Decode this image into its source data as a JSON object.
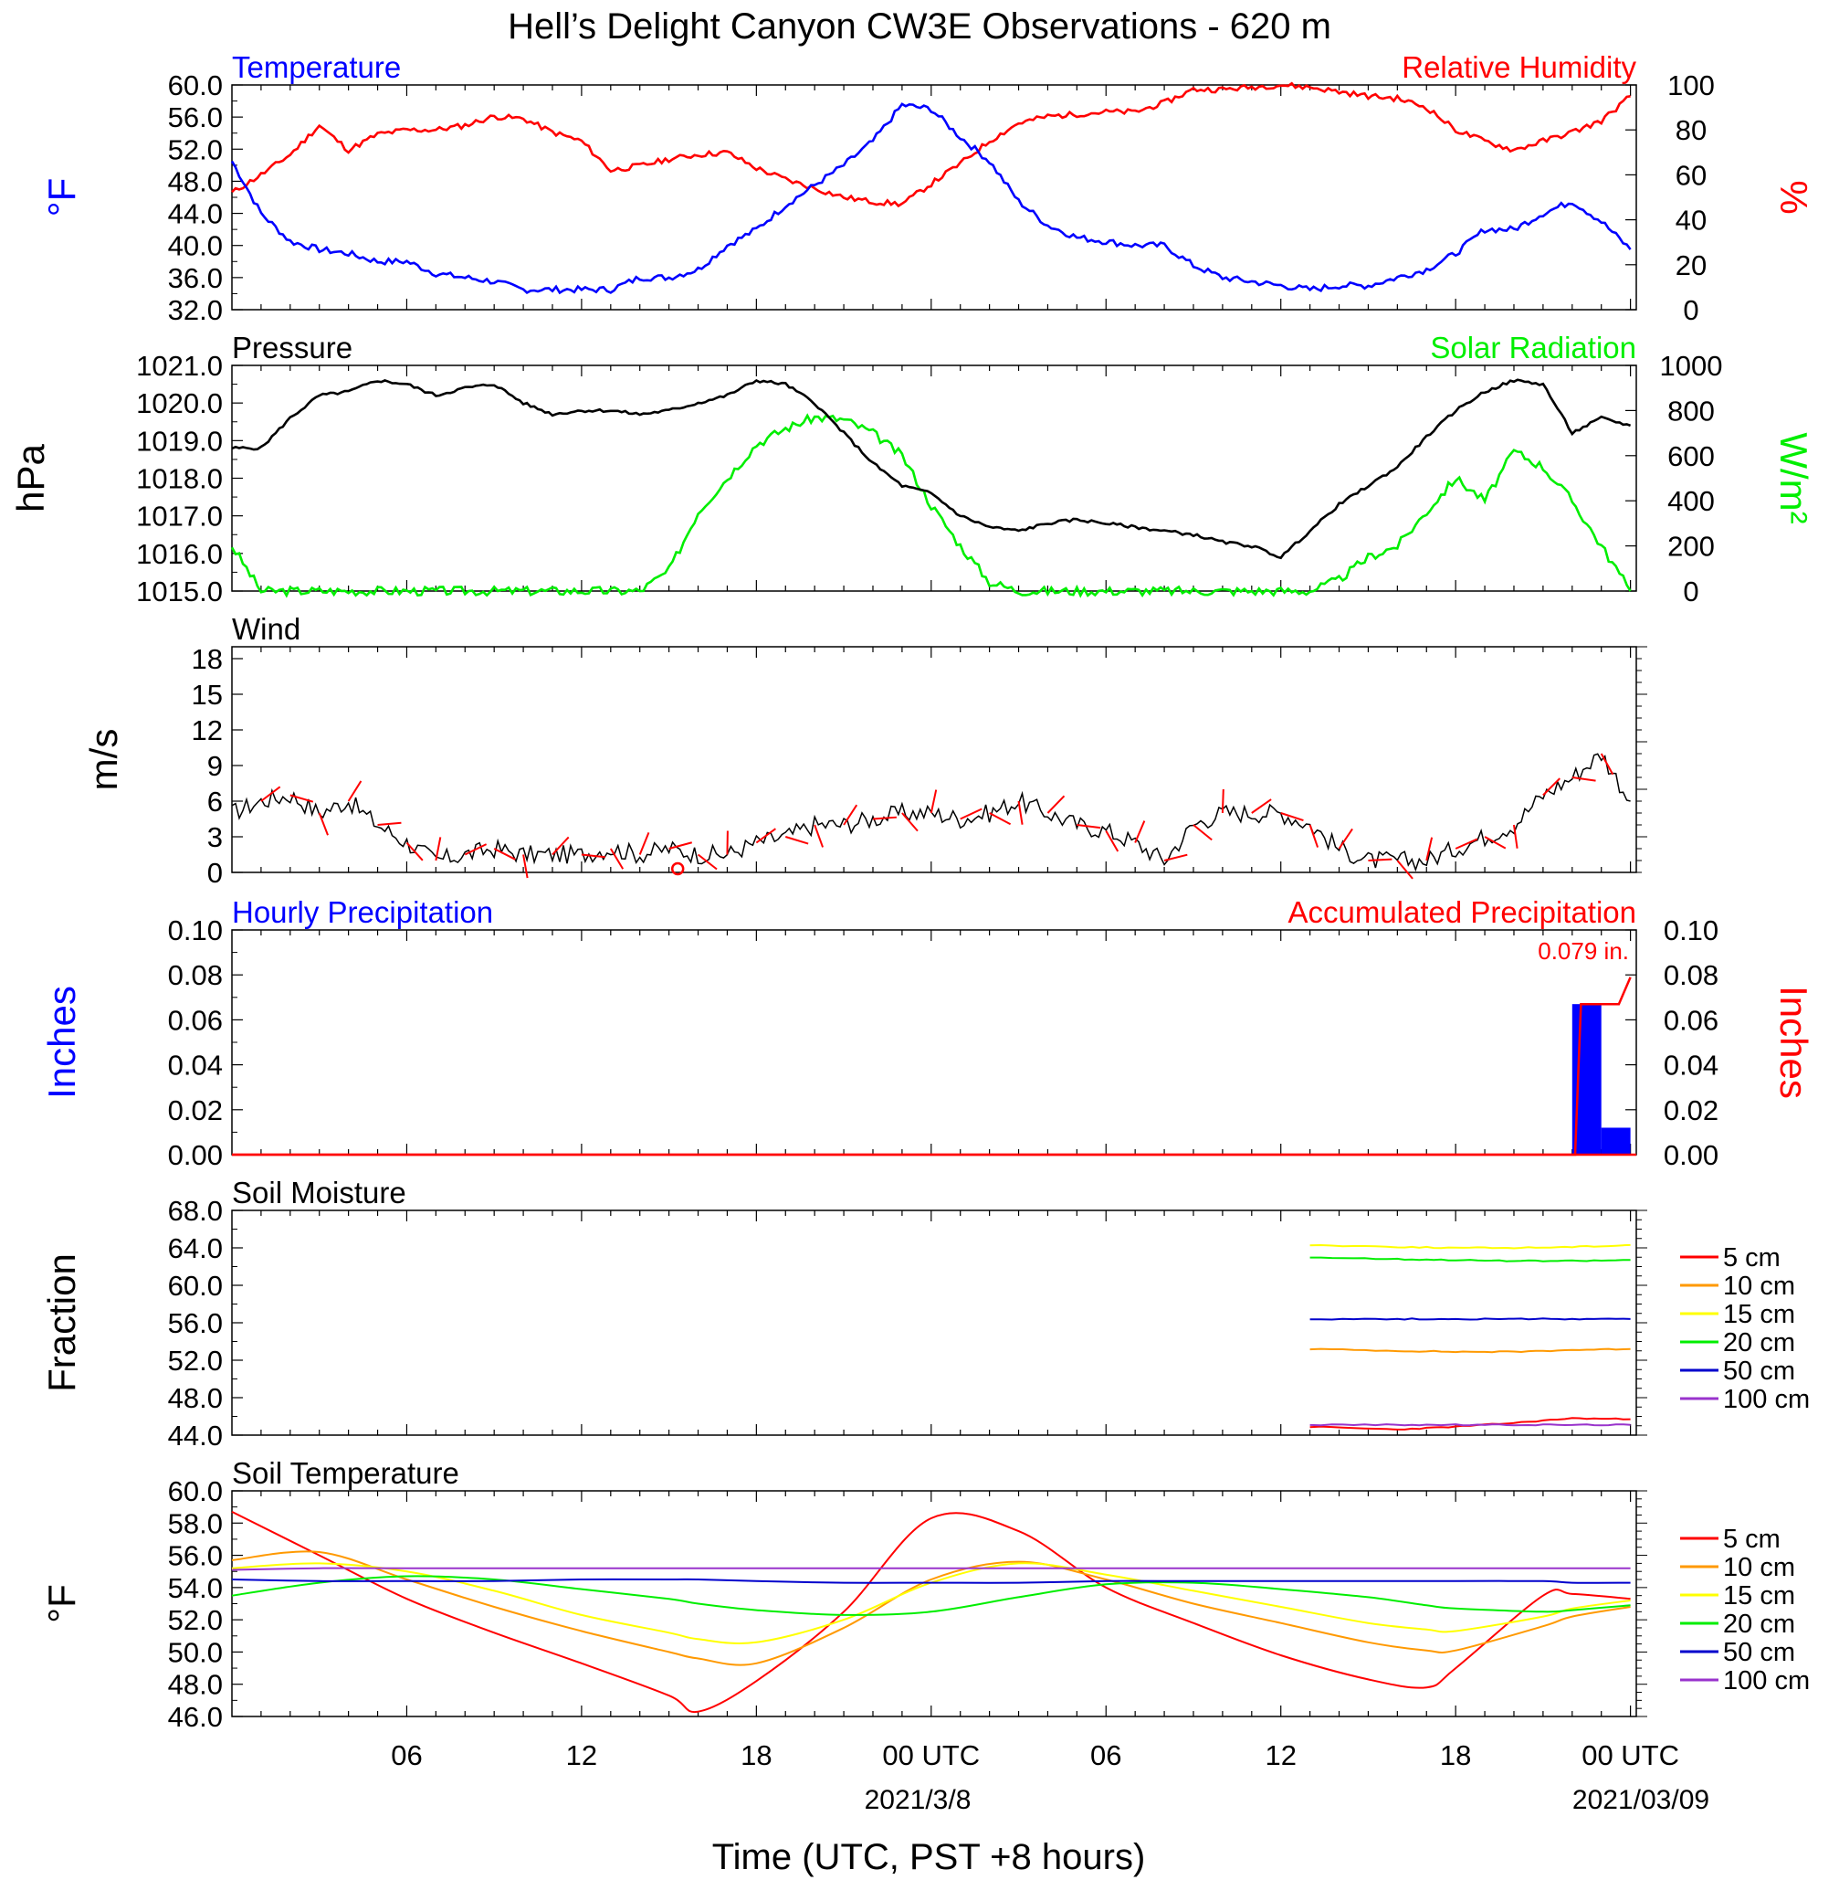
{
  "page": {
    "title": "Hell’s Delight Canyon CW3E Observations - 620 m",
    "xlabel": "Time (UTC, PST +8 hours)",
    "x_ticks": [
      "06",
      "12",
      "18",
      "00 UTC",
      "06",
      "12",
      "18",
      "00 UTC"
    ],
    "x_tick_hours": [
      6,
      12,
      18,
      24,
      30,
      36,
      42,
      48
    ],
    "date_labels": [
      "2021/3/8",
      "2021/03/09"
    ]
  },
  "chart_data": [
    {
      "type": "line",
      "title_left": "Temperature",
      "title_right": "Relative Humidity",
      "ylabel_left": "°F",
      "ylabel_right": "%",
      "ylim_left": [
        32,
        60
      ],
      "ylim_right": [
        0,
        100
      ],
      "yticks_left": [
        "60.0",
        "56.0",
        "52.0",
        "48.0",
        "44.0",
        "40.0",
        "36.0",
        "32.0"
      ],
      "yticks_right": [
        "100",
        "80",
        "60",
        "40",
        "20",
        "0"
      ],
      "colors": {
        "temperature": "#0000ff",
        "relative_humidity": "#ff0000"
      },
      "x_hours": [
        0,
        1,
        2,
        3,
        4,
        5,
        6,
        7,
        8,
        9,
        10,
        11,
        12,
        13,
        14,
        15,
        16,
        17,
        18,
        19,
        20,
        21,
        22,
        23,
        24,
        25,
        26,
        27,
        28,
        29,
        30,
        31,
        32,
        33,
        34,
        35,
        36,
        37,
        38,
        39,
        40,
        41,
        42,
        43,
        44,
        45,
        46,
        47,
        48
      ],
      "series": [
        {
          "name": "Temperature",
          "axis": "left",
          "values": [
            50.5,
            44,
            40.5,
            39.5,
            39,
            38,
            38,
            36.5,
            36,
            35.5,
            34.5,
            34.5,
            34.5,
            34.5,
            36,
            36,
            37,
            40,
            42,
            45,
            47.5,
            50,
            53,
            57.5,
            57,
            53.5,
            50.5,
            45.5,
            42.5,
            41,
            40.5,
            40,
            40,
            37.5,
            36,
            35.5,
            35,
            34.5,
            35,
            35,
            36,
            37,
            39,
            42,
            42,
            44,
            45.5,
            43,
            39.5
          ]
        },
        {
          "name": "Relative Humidity",
          "axis": "right",
          "values": [
            52,
            60,
            69,
            82,
            71,
            78,
            80,
            80,
            82,
            86,
            85,
            79,
            75,
            62,
            64,
            67,
            69,
            70,
            63,
            58,
            54,
            50,
            48,
            47,
            56,
            65,
            75,
            83,
            86,
            87,
            88,
            88,
            92,
            98,
            98,
            99,
            100,
            99,
            97,
            95,
            94,
            90,
            80,
            75,
            71,
            75,
            79,
            84,
            95
          ]
        }
      ]
    },
    {
      "type": "line",
      "title_left": "Pressure",
      "title_right": "Solar Radiation",
      "ylabel_left": "hPa",
      "ylabel_right": "W/m²",
      "ylim_left": [
        1015,
        1021
      ],
      "ylim_right": [
        0,
        1000
      ],
      "yticks_left": [
        "1021.0",
        "1020.0",
        "1019.0",
        "1018.0",
        "1017.0",
        "1016.0",
        "1015.0"
      ],
      "yticks_right": [
        "1000",
        "800",
        "600",
        "400",
        "200",
        "0"
      ],
      "colors": {
        "pressure": "#000000",
        "solar_radiation": "#00ee00"
      },
      "x_hours": [
        0,
        1,
        2,
        3,
        4,
        5,
        6,
        7,
        8,
        9,
        10,
        11,
        12,
        13,
        14,
        15,
        16,
        17,
        18,
        19,
        20,
        21,
        22,
        23,
        24,
        25,
        26,
        27,
        28,
        29,
        30,
        31,
        32,
        33,
        34,
        35,
        36,
        37,
        38,
        39,
        40,
        41,
        42,
        43,
        44,
        45,
        46,
        47,
        48
      ],
      "series": [
        {
          "name": "Pressure",
          "axis": "left",
          "values": [
            1018.8,
            1018.8,
            1019.6,
            1020.2,
            1020.3,
            1020.6,
            1020.5,
            1020.2,
            1020.4,
            1020.5,
            1020.0,
            1019.7,
            1019.8,
            1019.8,
            1019.7,
            1019.8,
            1020.0,
            1020.2,
            1020.6,
            1020.5,
            1020.0,
            1019.2,
            1018.4,
            1017.8,
            1017.6,
            1017.0,
            1016.7,
            1016.6,
            1016.8,
            1016.9,
            1016.8,
            1016.7,
            1016.6,
            1016.5,
            1016.3,
            1016.2,
            1015.9,
            1016.6,
            1017.3,
            1017.8,
            1018.3,
            1019.1,
            1019.8,
            1020.3,
            1020.6,
            1020.5,
            1019.2,
            1019.6,
            1019.4
          ]
        },
        {
          "name": "Solar Radiation",
          "axis": "right",
          "values": [
            200,
            0,
            0,
            0,
            0,
            0,
            0,
            0,
            0,
            0,
            0,
            0,
            0,
            0,
            0,
            90,
            350,
            500,
            650,
            720,
            770,
            760,
            700,
            600,
            380,
            200,
            40,
            0,
            0,
            0,
            0,
            0,
            0,
            0,
            0,
            0,
            0,
            0,
            50,
            150,
            200,
            350,
            500,
            400,
            620,
            550,
            400,
            200,
            0
          ]
        }
      ]
    },
    {
      "type": "line",
      "title": "Wind",
      "ylabel": "m/s",
      "ylim": [
        0,
        19
      ],
      "yticks": [
        "18",
        "15",
        "12",
        "9",
        "6",
        "3",
        "0"
      ],
      "color": "#000000",
      "barb_color": "#ff0000",
      "x_hours": [
        0,
        1,
        2,
        3,
        4,
        5,
        6,
        7,
        8,
        9,
        10,
        11,
        12,
        13,
        14,
        15,
        16,
        17,
        18,
        19,
        20,
        21,
        22,
        23,
        24,
        25,
        26,
        27,
        28,
        29,
        30,
        31,
        32,
        33,
        34,
        35,
        36,
        37,
        38,
        39,
        40,
        41,
        42,
        43,
        44,
        45,
        46,
        47,
        48
      ],
      "series": [
        {
          "name": "Wind speed",
          "values": [
            5,
            6,
            6.5,
            5,
            6,
            4,
            2.5,
            1,
            1.5,
            2,
            1.5,
            1.5,
            1.5,
            2,
            1.5,
            2,
            1.5,
            1.5,
            2.5,
            3,
            4,
            4,
            4.5,
            5,
            5,
            4.5,
            5,
            6,
            5,
            4,
            3.5,
            2.5,
            1,
            4,
            5,
            5,
            5,
            4,
            2,
            1,
            1,
            1,
            2,
            3,
            4,
            6.5,
            8,
            10,
            6
          ]
        }
      ]
    },
    {
      "type": "bar",
      "title_left": "Hourly Precipitation",
      "title_right": "Accumulated Precipitation",
      "annotation": "0.079 in.",
      "ylabel_left": "Inches",
      "ylabel_right": "Inches",
      "ylim": [
        0,
        0.1
      ],
      "yticks": [
        "0.10",
        "0.08",
        "0.06",
        "0.04",
        "0.02",
        "0.00"
      ],
      "colors": {
        "hourly": "#0000ff",
        "accumulated": "#ff0000"
      },
      "bars": [
        {
          "start_hour": 46,
          "end_hour": 47,
          "value": 0.067
        },
        {
          "start_hour": 47,
          "end_hour": 48,
          "value": 0.012
        }
      ],
      "accumulated": {
        "x_hours": [
          0,
          46.1,
          46.3,
          47.0,
          47.6,
          48
        ],
        "values": [
          0,
          0,
          0.067,
          0.067,
          0.067,
          0.079
        ]
      }
    },
    {
      "type": "line",
      "title": "Soil Moisture",
      "ylabel": "Fraction",
      "ylim": [
        44,
        68
      ],
      "yticks": [
        "68.0",
        "64.0",
        "60.0",
        "56.0",
        "52.0",
        "48.0",
        "44.0"
      ],
      "x_hours": [
        37,
        40,
        42,
        44,
        46,
        48
      ],
      "series": [
        {
          "name": "5 cm",
          "color": "#ff0000",
          "values": [
            44.9,
            44.6,
            44.9,
            45.3,
            45.8,
            45.7
          ]
        },
        {
          "name": "10 cm",
          "color": "#ff9900",
          "values": [
            53.2,
            53.0,
            52.9,
            52.9,
            53.1,
            53.2
          ]
        },
        {
          "name": "15 cm",
          "color": "#ffff00",
          "values": [
            64.3,
            64.1,
            64.0,
            64.0,
            64.1,
            64.3
          ]
        },
        {
          "name": "20 cm",
          "color": "#00ee00",
          "values": [
            63.0,
            62.8,
            62.7,
            62.6,
            62.6,
            62.7
          ]
        },
        {
          "name": "50 cm",
          "color": "#0000cc",
          "values": [
            56.4,
            56.4,
            56.4,
            56.4,
            56.4,
            56.4
          ]
        },
        {
          "name": "100 cm",
          "color": "#9933cc",
          "values": [
            45.1,
            45.1,
            45.1,
            45.1,
            45.1,
            45.1
          ]
        }
      ]
    },
    {
      "type": "line",
      "title": "Soil Temperature",
      "ylabel": "°F",
      "ylim": [
        46,
        60
      ],
      "yticks": [
        "60.0",
        "58.0",
        "56.0",
        "54.0",
        "52.0",
        "50.0",
        "48.0",
        "46.0"
      ],
      "x_hours": [
        0,
        3,
        6,
        9,
        12,
        15,
        16,
        18,
        21,
        24,
        27,
        30,
        33,
        36,
        39,
        41,
        42,
        45,
        46,
        48
      ],
      "series": [
        {
          "name": "5 cm",
          "color": "#ff0000",
          "values": [
            58.7,
            56.0,
            53.3,
            51.2,
            49.3,
            47.3,
            46.3,
            48.2,
            52.5,
            58.3,
            57.5,
            54.0,
            51.8,
            49.8,
            48.3,
            47.8,
            49.0,
            53.5,
            53.6,
            53.3
          ]
        },
        {
          "name": "10 cm",
          "color": "#ff9900",
          "values": [
            55.7,
            56.2,
            54.5,
            52.8,
            51.3,
            50.0,
            49.6,
            49.3,
            51.5,
            54.5,
            55.6,
            54.5,
            53.0,
            51.8,
            50.6,
            50.1,
            50.1,
            51.6,
            52.2,
            52.8
          ]
        },
        {
          "name": "15 cm",
          "color": "#ffff00",
          "values": [
            55.2,
            55.5,
            55.0,
            53.8,
            52.3,
            51.2,
            50.8,
            50.6,
            52.0,
            54.3,
            55.5,
            54.8,
            53.8,
            52.8,
            51.8,
            51.4,
            51.3,
            52.2,
            52.7,
            53.2
          ]
        },
        {
          "name": "20 cm",
          "color": "#00ee00",
          "values": [
            53.5,
            54.3,
            54.7,
            54.5,
            53.9,
            53.3,
            53.0,
            52.6,
            52.3,
            52.5,
            53.4,
            54.2,
            54.3,
            53.9,
            53.4,
            52.9,
            52.7,
            52.5,
            52.6,
            52.9
          ]
        },
        {
          "name": "50 cm",
          "color": "#0000cc",
          "values": [
            54.5,
            54.4,
            54.4,
            54.4,
            54.5,
            54.5,
            54.5,
            54.4,
            54.3,
            54.3,
            54.3,
            54.4,
            54.4,
            54.4,
            54.4,
            54.4,
            54.4,
            54.4,
            54.3,
            54.3
          ]
        },
        {
          "name": "100 cm",
          "color": "#9933cc",
          "values": [
            55.1,
            55.2,
            55.2,
            55.2,
            55.2,
            55.2,
            55.2,
            55.2,
            55.2,
            55.2,
            55.2,
            55.2,
            55.2,
            55.2,
            55.2,
            55.2,
            55.2,
            55.2,
            55.2,
            55.2
          ]
        }
      ]
    }
  ]
}
